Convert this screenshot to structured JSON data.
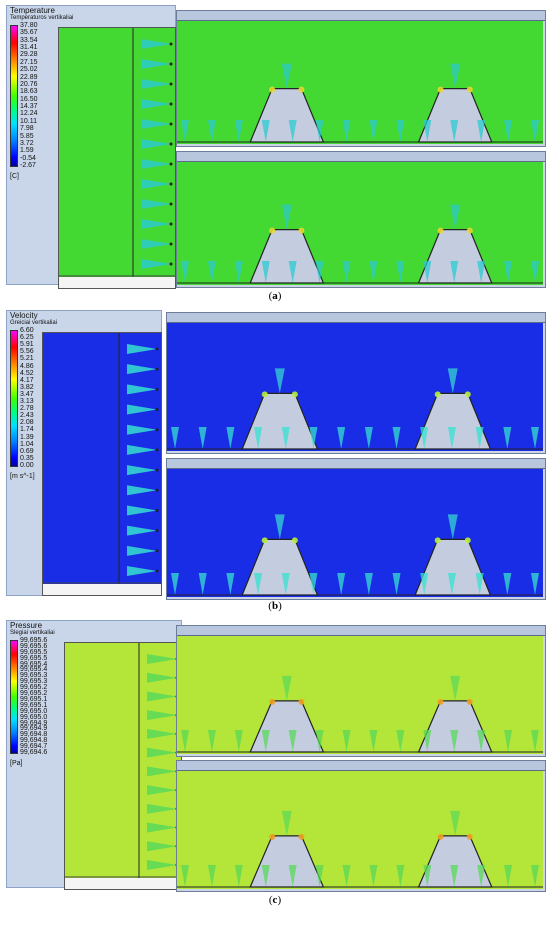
{
  "panels": [
    {
      "id": "a",
      "legend_title": "Temperature",
      "legend_subtitle": "Temperaturos vertikaliai",
      "ticks": [
        "37.80",
        "35.67",
        "33.54",
        "31.41",
        "29.28",
        "27.15",
        "25.02",
        "22.89",
        "20.76",
        "18.63",
        "16.50",
        "14.37",
        "12.24",
        "10.11",
        "7.98",
        "5.85",
        "3.72",
        "1.59",
        "-0.54",
        "-2.67"
      ],
      "unit": "[C]",
      "caption_letter": "a",
      "field_color": "#44d932",
      "jet_color": "#2bc9d0",
      "hot_color": "#e8d830"
    },
    {
      "id": "b",
      "legend_title": "Velocity",
      "legend_subtitle": "Greiciai vertikaliai",
      "ticks": [
        "6.60",
        "6.25",
        "5.91",
        "5.56",
        "5.21",
        "4.86",
        "4.52",
        "4.17",
        "3.82",
        "3.47",
        "3.13",
        "2.78",
        "2.43",
        "2.08",
        "1.74",
        "1.39",
        "1.04",
        "0.69",
        "0.35",
        "0.00"
      ],
      "unit": "[m s^-1]",
      "caption_letter": "b",
      "field_color": "#1a2de6",
      "jet_color": "#36e0d0",
      "hot_color": "#b8f040"
    },
    {
      "id": "c",
      "legend_title": "Pressure",
      "legend_subtitle": "Slegiai vertikaliai",
      "ticks": [
        "99,695.6",
        "99,695.6",
        "99,695.5",
        "99,695.5",
        "99,695.4",
        "99,695.4",
        "99,695.3",
        "99,695.3",
        "99,695.2",
        "99,695.2",
        "99,695.1",
        "99,695.1",
        "99,695.0",
        "99,695.0",
        "99,694.9",
        "99,694.9",
        "99,694.8",
        "99,694.8",
        "99,694.7",
        "99,694.6"
      ],
      "unit": "[Pa]",
      "caption_letter": "c",
      "field_color": "#b4e63a",
      "jet_color": "#58d858",
      "hot_color": "#f0a020"
    }
  ]
}
